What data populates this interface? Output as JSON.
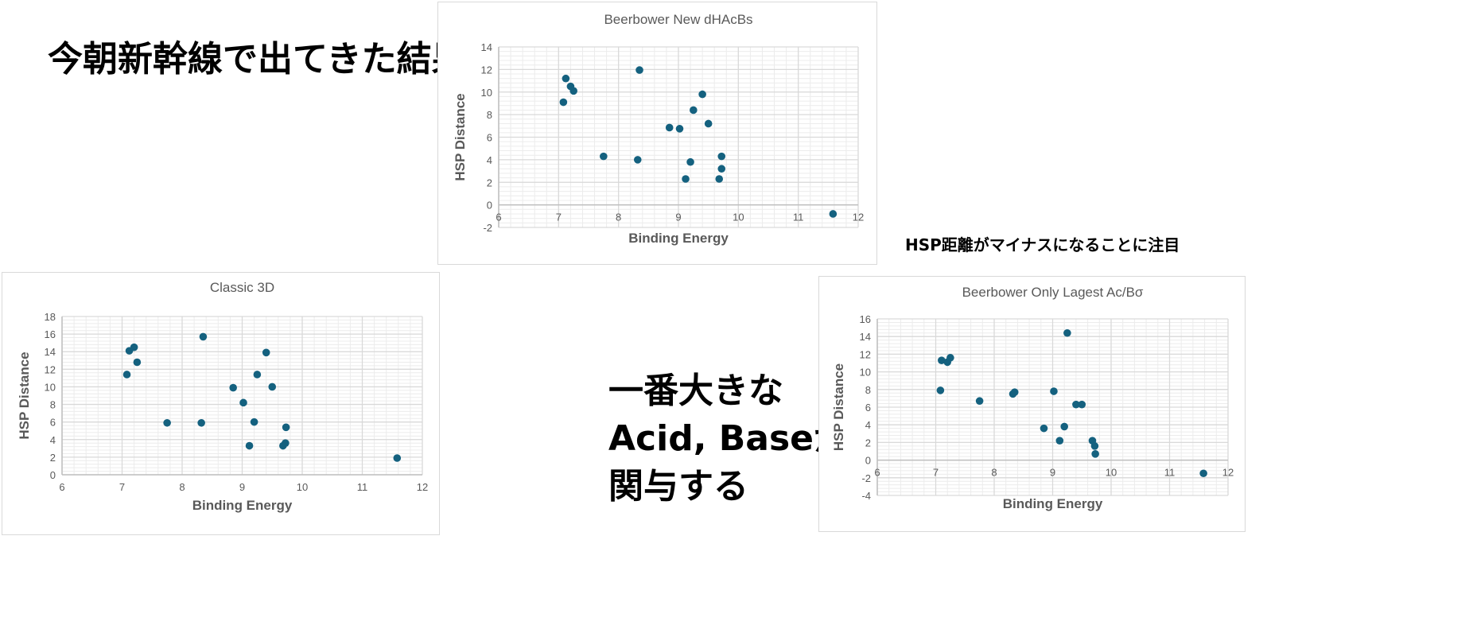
{
  "notes": {
    "headline": "今朝新幹線で出てきた結果",
    "negative_note": "HSP距離がマイナスになることに注目",
    "largest_line1": "一番大きな",
    "largest_line2": "Acid, Baseが",
    "largest_line3": "関与する"
  },
  "colors": {
    "marker": "#14617f",
    "grid_major": "#d9d9d9",
    "grid_minor": "#ececec",
    "text": "#595959"
  },
  "chart_data": [
    {
      "type": "scatter",
      "title": "Beerbower New dHAcBs",
      "xlabel": "Binding Energy",
      "ylabel": "HSP Distance",
      "xlim": [
        6,
        12
      ],
      "ylim": [
        -2,
        14
      ],
      "xticks": [
        6,
        7,
        8,
        9,
        10,
        11,
        12
      ],
      "yticks": [
        -2,
        0,
        2,
        4,
        6,
        8,
        10,
        12,
        14
      ],
      "grid": true,
      "x": [
        7.12,
        7.2,
        7.25,
        7.08,
        8.35,
        9.4,
        9.25,
        8.85,
        9.02,
        9.5,
        7.75,
        8.32,
        9.2,
        9.72,
        9.72,
        9.12,
        9.68,
        11.58
      ],
      "y": [
        11.2,
        10.5,
        10.1,
        9.1,
        11.95,
        9.8,
        8.4,
        6.85,
        6.75,
        7.2,
        4.3,
        4.0,
        3.8,
        4.3,
        3.2,
        2.3,
        2.3,
        -0.8
      ]
    },
    {
      "type": "scatter",
      "title": "Classic 3D",
      "xlabel": "Binding Energy",
      "ylabel": "HSP Distance",
      "xlim": [
        6,
        12
      ],
      "ylim": [
        0,
        18
      ],
      "xticks": [
        6,
        7,
        8,
        9,
        10,
        11,
        12
      ],
      "yticks": [
        0,
        2,
        4,
        6,
        8,
        10,
        12,
        14,
        16,
        18
      ],
      "grid": true,
      "x": [
        7.12,
        7.2,
        7.25,
        7.08,
        8.35,
        9.4,
        9.25,
        8.85,
        9.02,
        9.5,
        7.75,
        8.32,
        9.2,
        9.73,
        9.72,
        9.12,
        9.68,
        11.58
      ],
      "y": [
        14.1,
        14.5,
        12.8,
        11.4,
        15.7,
        13.9,
        11.4,
        9.9,
        8.2,
        10.0,
        5.9,
        5.9,
        6.0,
        5.4,
        3.6,
        3.3,
        3.3,
        1.9
      ]
    },
    {
      "type": "scatter",
      "title": "Beerbower Only Lagest Ac/Bσ",
      "xlabel": "Binding Energy",
      "ylabel": "HSP Distance",
      "xlim": [
        6,
        12
      ],
      "ylim": [
        -4,
        16
      ],
      "xticks": [
        6,
        7,
        8,
        9,
        10,
        11,
        12
      ],
      "yticks": [
        -4,
        -2,
        0,
        2,
        4,
        6,
        8,
        10,
        12,
        14,
        16
      ],
      "grid": true,
      "x": [
        7.1,
        7.2,
        7.25,
        7.08,
        7.75,
        8.32,
        8.35,
        9.25,
        9.02,
        9.4,
        9.5,
        8.85,
        9.2,
        9.12,
        9.68,
        9.72,
        9.73,
        11.58
      ],
      "y": [
        11.3,
        11.1,
        11.6,
        7.9,
        6.7,
        7.5,
        7.7,
        14.4,
        7.8,
        6.3,
        6.3,
        3.6,
        3.8,
        2.2,
        2.2,
        1.6,
        0.7,
        -1.5
      ]
    }
  ]
}
